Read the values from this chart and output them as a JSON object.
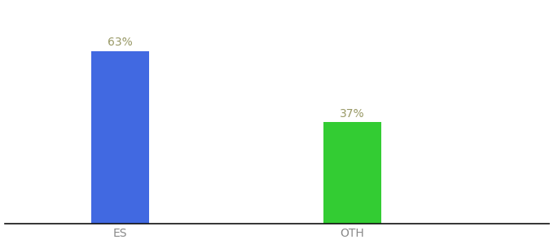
{
  "categories": [
    "ES",
    "OTH"
  ],
  "values": [
    63,
    37
  ],
  "bar_colors": [
    "#4169e1",
    "#33cc33"
  ],
  "label_color": "#999966",
  "label_fontsize": 10,
  "tick_fontsize": 10,
  "tick_color": "#888888",
  "background_color": "#ffffff",
  "ylim": [
    0,
    80
  ],
  "bar_width": 0.25,
  "x_positions": [
    1,
    2
  ],
  "xlim": [
    0.5,
    2.85
  ],
  "figsize": [
    6.8,
    3.0
  ],
  "dpi": 100
}
